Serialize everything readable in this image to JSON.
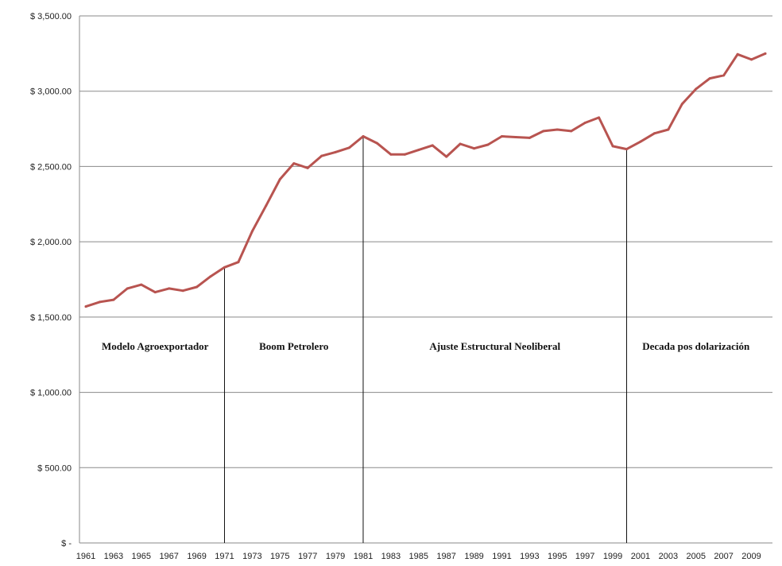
{
  "chart_data": {
    "type": "line",
    "title": "",
    "xlabel": "",
    "ylabel": "",
    "ylim": [
      0,
      3500
    ],
    "grid": true,
    "series_color": "#b85450",
    "y_ticks": [
      {
        "value": 0,
        "label": "$ -"
      },
      {
        "value": 500,
        "label": "$ 500.00"
      },
      {
        "value": 1000,
        "label": "$ 1,000.00"
      },
      {
        "value": 1500,
        "label": "$ 1,500.00"
      },
      {
        "value": 2000,
        "label": "$ 2,000.00"
      },
      {
        "value": 2500,
        "label": "$ 2,500.00"
      },
      {
        "value": 3000,
        "label": "$ 3,000.00"
      },
      {
        "value": 3500,
        "label": "$ 3,500.00"
      }
    ],
    "x_tick_labels": [
      "1961",
      "1963",
      "1965",
      "1967",
      "1969",
      "1971",
      "1973",
      "1975",
      "1977",
      "1979",
      "1981",
      "1983",
      "1985",
      "1987",
      "1989",
      "1991",
      "1993",
      "1995",
      "1997",
      "1999",
      "2001",
      "2003",
      "2005",
      "2007",
      "2009"
    ],
    "x": [
      1961,
      1962,
      1963,
      1964,
      1965,
      1966,
      1967,
      1968,
      1969,
      1970,
      1971,
      1972,
      1973,
      1974,
      1975,
      1976,
      1977,
      1978,
      1979,
      1980,
      1981,
      1982,
      1983,
      1984,
      1985,
      1986,
      1987,
      1988,
      1989,
      1990,
      1991,
      1992,
      1993,
      1994,
      1995,
      1996,
      1997,
      1998,
      1999,
      2000,
      2001,
      2002,
      2003,
      2004,
      2005,
      2006,
      2007,
      2008,
      2009,
      2010
    ],
    "values": [
      1570,
      1600,
      1615,
      1690,
      1715,
      1665,
      1690,
      1675,
      1700,
      1770,
      1830,
      1865,
      2070,
      2240,
      2415,
      2520,
      2490,
      2570,
      2595,
      2625,
      2700,
      2655,
      2580,
      2580,
      2610,
      2640,
      2565,
      2650,
      2620,
      2645,
      2700,
      2695,
      2690,
      2735,
      2745,
      2735,
      2790,
      2825,
      2635,
      2615,
      2665,
      2720,
      2745,
      2915,
      3015,
      3085,
      3105,
      3245,
      3210,
      3250
    ],
    "periods": [
      {
        "label": "Modelo Agroexportador",
        "start": 1961,
        "end": 1971
      },
      {
        "label": "Boom Petrolero",
        "start": 1971,
        "end": 1981
      },
      {
        "label": "Ajuste Estructural Neoliberal",
        "start": 1981,
        "end": 2000
      },
      {
        "label": "Decada pos dolarización",
        "start": 2000,
        "end": 2010
      }
    ],
    "dividers": [
      1971,
      1981,
      2000
    ]
  }
}
